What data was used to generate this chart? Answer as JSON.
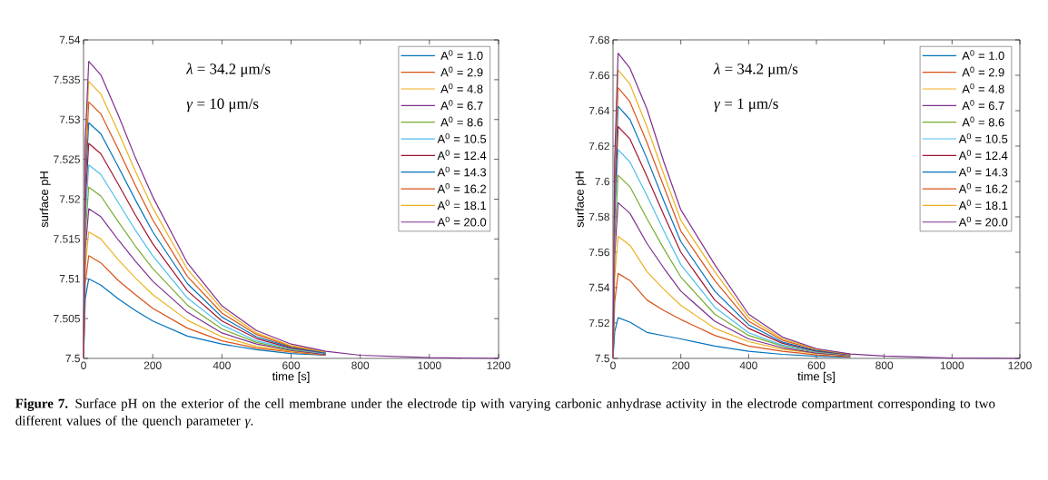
{
  "chart_data": [
    {
      "type": "line",
      "xlabel": "time [s]",
      "ylabel": "surface pH",
      "legend": "top right",
      "grid": false,
      "xlim": [
        0,
        1200
      ],
      "ylim": [
        7.5,
        7.54
      ],
      "xticks": [
        0,
        200,
        400,
        600,
        800,
        1000,
        1200
      ],
      "yticks": [
        7.5,
        7.505,
        7.51,
        7.515,
        7.52,
        7.525,
        7.53,
        7.535,
        7.54
      ],
      "x": [
        0,
        5,
        15,
        50,
        100,
        150,
        200,
        300,
        400,
        500,
        600,
        700,
        800,
        1000,
        1200
      ],
      "annotations": [
        "*λ* = 34.2 μm/s",
        "*γ* = 10 μm/s",
        "**Figure 7.** Surface pH on the exterior of the cell membrane under the electrode tip with varying carbonic anhydrase activity in the electrode compartment corresponding to two different values of the quench parameter *γ*."
      ],
      "series": [
        {
          "name": "A$^{0}$ = 1.0",
          "color": "#0072bd",
          "values": [
            7.5,
            7.5075,
            7.51,
            7.5092,
            7.5075,
            7.506,
            7.5047,
            7.5028,
            7.5018,
            7.5011,
            7.5006,
            7.5004,
            null,
            null,
            null
          ]
        },
        {
          "name": "A$^{0}$ = 2.9",
          "color": "#d95319",
          "values": [
            7.5,
            7.5095,
            7.5129,
            7.512,
            7.5098,
            7.508,
            7.5063,
            7.5038,
            7.5022,
            7.5013,
            7.5008,
            7.5004,
            null,
            null,
            null
          ]
        },
        {
          "name": "A$^{0}$ = 4.8",
          "color": "#edb120",
          "values": [
            7.5,
            7.5115,
            7.5159,
            7.515,
            7.5124,
            7.5101,
            7.508,
            7.5048,
            7.5027,
            7.5015,
            7.5009,
            7.5005,
            null,
            null,
            null
          ]
        },
        {
          "name": "A$^{0}$ = 6.7",
          "color": "#7e2f8e",
          "values": [
            7.5,
            7.5135,
            7.5188,
            7.5178,
            7.5149,
            7.5122,
            7.5097,
            7.5058,
            7.5032,
            7.5018,
            7.501,
            7.5005,
            null,
            null,
            null
          ]
        },
        {
          "name": "A$^{0}$ = 8.6",
          "color": "#77ac30",
          "values": [
            7.5,
            7.5155,
            7.5215,
            7.5204,
            7.5172,
            7.5141,
            7.5113,
            7.5067,
            7.5037,
            7.502,
            7.5011,
            7.5006,
            null,
            null,
            null
          ]
        },
        {
          "name": "A$^{0}$ = 10.5",
          "color": "#4dbeee",
          "values": [
            7.5,
            7.5175,
            7.5243,
            7.5231,
            7.5196,
            7.5161,
            7.5129,
            7.5076,
            7.5042,
            7.5022,
            7.5012,
            7.5006,
            null,
            null,
            null
          ]
        },
        {
          "name": "A$^{0}$ = 12.4",
          "color": "#a2142f",
          "values": [
            7.5,
            7.5195,
            7.527,
            7.5257,
            7.5219,
            7.518,
            7.5144,
            7.5085,
            7.5047,
            7.5025,
            7.5013,
            7.5007,
            null,
            null,
            null
          ]
        },
        {
          "name": "A$^{0}$ = 14.3",
          "color": "#0072bd",
          "values": [
            7.5,
            7.5215,
            7.5296,
            7.5282,
            7.5241,
            7.5199,
            7.5159,
            7.5094,
            7.5052,
            7.5027,
            7.5014,
            7.5007,
            null,
            null,
            null
          ]
        },
        {
          "name": "A$^{0}$ = 16.2",
          "color": "#d95319",
          "values": [
            7.5,
            7.5235,
            7.5322,
            7.5307,
            7.5263,
            7.5217,
            7.5174,
            7.5103,
            7.5057,
            7.503,
            7.5015,
            7.5008,
            null,
            null,
            null
          ]
        },
        {
          "name": "A$^{0}$ = 18.1",
          "color": "#edb120",
          "values": [
            7.5,
            7.5255,
            7.5348,
            7.5332,
            7.5285,
            7.5235,
            7.5189,
            7.5112,
            7.5062,
            7.5032,
            7.5016,
            7.5008,
            null,
            null,
            null
          ]
        },
        {
          "name": "A$^{0}$ = 20.0",
          "color": "#7e2f8e",
          "values": [
            7.5,
            7.5275,
            7.5373,
            7.5356,
            7.5306,
            7.5252,
            7.5203,
            7.512,
            7.5066,
            7.5035,
            7.5018,
            7.5009,
            7.5004,
            7.5001,
            7.5
          ]
        }
      ]
    },
    {
      "type": "line",
      "xlabel": "time [s]",
      "ylabel": "surface pH",
      "legend": "top right",
      "grid": false,
      "xlim": [
        0,
        1200
      ],
      "ylim": [
        7.5,
        7.68
      ],
      "xticks": [
        0,
        200,
        400,
        600,
        800,
        1000,
        1200
      ],
      "yticks": [
        7.5,
        7.52,
        7.54,
        7.56,
        7.58,
        7.6,
        7.62,
        7.64,
        7.66,
        7.68
      ],
      "x": [
        0,
        5,
        15,
        50,
        100,
        150,
        200,
        300,
        400,
        500,
        600,
        700,
        800,
        1000,
        1200
      ],
      "annotations": [
        "*λ* = 34.2 μm/s",
        "*γ* = 1 μm/s"
      ],
      "series": [
        {
          "name": "A$^{0}$ = 1.0",
          "color": "#0072bd",
          "values": [
            7.5,
            7.515,
            7.523,
            7.5205,
            7.5147,
            7.5128,
            7.511,
            7.507,
            7.504,
            7.5023,
            7.5012,
            7.5007,
            null,
            null,
            null
          ]
        },
        {
          "name": "A$^{0}$ = 2.9",
          "color": "#d95319",
          "values": [
            7.5,
            7.532,
            7.548,
            7.544,
            7.533,
            7.527,
            7.522,
            7.513,
            7.507,
            7.504,
            7.502,
            7.501,
            null,
            null,
            null
          ]
        },
        {
          "name": "A$^{0}$ = 4.8",
          "color": "#edb120",
          "values": [
            7.5,
            7.546,
            7.569,
            7.564,
            7.549,
            7.539,
            7.53,
            7.517,
            7.5095,
            7.5052,
            7.5027,
            7.5014,
            null,
            null,
            null
          ]
        },
        {
          "name": "A$^{0}$ = 6.7",
          "color": "#7e2f8e",
          "values": [
            7.5,
            7.558,
            7.588,
            7.582,
            7.565,
            7.551,
            7.538,
            7.521,
            7.511,
            7.506,
            7.503,
            7.5016,
            null,
            null,
            null
          ]
        },
        {
          "name": "A$^{0}$ = 8.6",
          "color": "#77ac30",
          "values": [
            7.5,
            7.568,
            7.6035,
            7.597,
            7.579,
            7.562,
            7.546,
            7.525,
            7.513,
            7.507,
            7.5035,
            7.5018,
            null,
            null,
            null
          ]
        },
        {
          "name": "A$^{0}$ = 10.5",
          "color": "#4dbeee",
          "values": [
            7.5,
            7.578,
            7.618,
            7.611,
            7.592,
            7.572,
            7.553,
            7.529,
            7.5145,
            7.5075,
            7.5038,
            7.502,
            null,
            null,
            null
          ]
        },
        {
          "name": "A$^{0}$ = 12.4",
          "color": "#a2142f",
          "values": [
            7.5,
            7.586,
            7.631,
            7.624,
            7.603,
            7.581,
            7.56,
            7.533,
            7.517,
            7.5085,
            7.5042,
            7.5021,
            null,
            null,
            null
          ]
        },
        {
          "name": "A$^{0}$ = 14.3",
          "color": "#0072bd",
          "values": [
            7.5,
            7.594,
            7.6425,
            7.635,
            7.613,
            7.589,
            7.566,
            7.538,
            7.519,
            7.5092,
            7.5045,
            7.5022,
            null,
            null,
            null
          ]
        },
        {
          "name": "A$^{0}$ = 16.2",
          "color": "#d95319",
          "values": [
            7.5,
            7.601,
            7.653,
            7.645,
            7.622,
            7.597,
            7.572,
            7.544,
            7.521,
            7.5102,
            7.505,
            7.5023,
            null,
            null,
            null
          ]
        },
        {
          "name": "A$^{0}$ = 18.1",
          "color": "#edb120",
          "values": [
            7.5,
            7.607,
            7.663,
            7.655,
            7.631,
            7.604,
            7.578,
            7.549,
            7.523,
            7.511,
            7.5052,
            7.5024,
            null,
            null,
            null
          ]
        },
        {
          "name": "A$^{0}$ = 20.0",
          "color": "#7e2f8e",
          "values": [
            7.5,
            7.613,
            7.6725,
            7.664,
            7.641,
            7.611,
            7.584,
            7.553,
            7.525,
            7.512,
            7.5055,
            7.5025,
            7.5013,
            7.5002,
            7.5
          ]
        }
      ]
    }
  ]
}
